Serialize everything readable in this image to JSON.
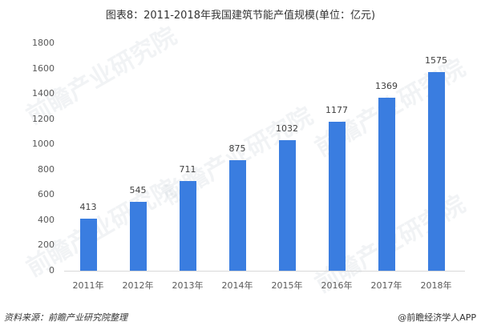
{
  "title": "图表8：2011-2018年我国建筑节能产值规模(单位：亿元)",
  "footer": {
    "source": "资料来源：前瞻产业研究院整理",
    "brand": "@前瞻经济学人APP"
  },
  "watermark": "前瞻产业研究院",
  "colors": {
    "bar": "#3a7de0",
    "axis": "#d9d9d9"
  },
  "chart_data": {
    "type": "bar",
    "title": "图表8：2011-2018年我国建筑节能产值规模(单位：亿元)",
    "xlabel": "",
    "ylabel": "",
    "categories": [
      "2011年",
      "2012年",
      "2013年",
      "2014年",
      "2015年",
      "2016年",
      "2017年",
      "2018年"
    ],
    "values": [
      413,
      545,
      711,
      875,
      1032,
      1177,
      1369,
      1575
    ],
    "yticks": [
      "0",
      "200",
      "400",
      "600",
      "800",
      "1000",
      "1200",
      "1400",
      "1600",
      "1800"
    ],
    "ylim": [
      0,
      1800
    ],
    "grid": false,
    "legend": null
  }
}
